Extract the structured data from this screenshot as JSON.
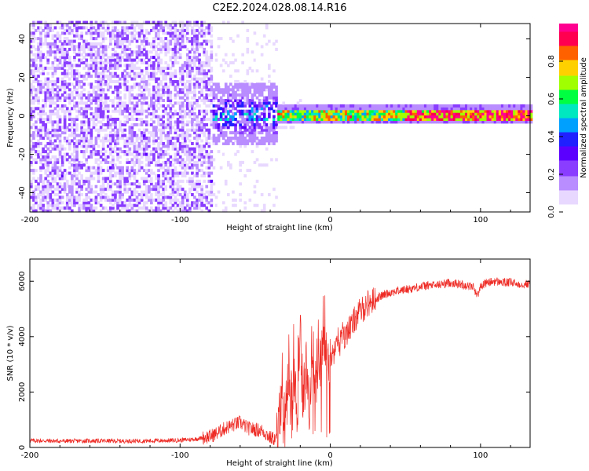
{
  "title": "C2E2.2024.028.08.14.R16",
  "colors": {
    "snr_line": "#ee2a24",
    "colormap": [
      "#ffffff",
      "#e8d8ff",
      "#b98cff",
      "#8a3dff",
      "#5b00ff",
      "#2020ff",
      "#00a0ff",
      "#00e8c0",
      "#00ff40",
      "#a0ff00",
      "#ffd000",
      "#ff6000",
      "#ff0050",
      "#ff0090"
    ]
  },
  "chart_data": [
    {
      "type": "heatmap",
      "xlabel": "Height of straight line (km)",
      "ylabel": "Frequency (Hz)",
      "xlim": [
        -200,
        133
      ],
      "ylim": [
        -50,
        48
      ],
      "x_ticks": [
        -200,
        -100,
        0,
        100
      ],
      "y_ticks": [
        -40,
        -20,
        0,
        20,
        40
      ],
      "x_tick_labels": [
        "-200",
        "-100",
        "0",
        "100"
      ],
      "y_tick_labels": [
        "-40",
        "-20",
        "0",
        "20",
        "40"
      ],
      "colorbar": {
        "label": "Normalized spectral amplitude",
        "range": [
          0,
          1
        ],
        "ticks": [
          0,
          0.2,
          0.4,
          0.6,
          0.8
        ],
        "tick_labels": [
          "0.0",
          "0.2",
          "0.4",
          "0.6",
          "0.8"
        ]
      },
      "description_regions": [
        {
          "x_range": [
            -200,
            -80
          ],
          "freq_range": [
            -50,
            48
          ],
          "level": 0.12
        },
        {
          "x_range": [
            -80,
            -36
          ],
          "freq_range": [
            -50,
            48
          ],
          "level": 0.04
        },
        {
          "x_range": [
            -85,
            -35
          ],
          "freq_range": [
            -15,
            15
          ],
          "level": 0.25
        },
        {
          "x_range": [
            -35,
            133
          ],
          "freq_range": [
            -3,
            3
          ],
          "level": 0.6
        }
      ]
    },
    {
      "type": "line",
      "xlabel": "Height of straight line (km)",
      "ylabel": "SNR (10 * v/v)",
      "xlim": [
        -200,
        133
      ],
      "ylim": [
        0,
        6800
      ],
      "x_ticks": [
        -200,
        -100,
        0,
        100
      ],
      "y_ticks": [
        0,
        2000,
        4000,
        6000
      ],
      "x_tick_labels": [
        "-200",
        "-100",
        "0",
        "100"
      ],
      "y_tick_labels": [
        "0",
        "2000",
        "4000",
        "6000"
      ],
      "series": [
        {
          "x": [
            -200,
            -180,
            -160,
            -140,
            -120,
            -100,
            -90,
            -80,
            -75,
            -70,
            -65,
            -60,
            -55,
            -50,
            -45,
            -40,
            -36,
            -34,
            -32,
            -30,
            -28,
            -26,
            -24,
            -22,
            -20,
            -18,
            -16,
            -14,
            -12,
            -10,
            -8,
            -6,
            -4,
            -2,
            0,
            2,
            4,
            6,
            8,
            10,
            12,
            14,
            16,
            18,
            20,
            25,
            30,
            35,
            40,
            45,
            50,
            55,
            60,
            65,
            70,
            75,
            80,
            85,
            90,
            95,
            98,
            100,
            102,
            105,
            110,
            115,
            120,
            125,
            130,
            133
          ],
          "y": [
            250,
            230,
            240,
            230,
            240,
            260,
            300,
            400,
            520,
            700,
            800,
            900,
            700,
            650,
            600,
            350,
            300,
            900,
            1600,
            700,
            2600,
            1500,
            3200,
            1100,
            3800,
            1800,
            2800,
            1600,
            3600,
            2200,
            3400,
            2900,
            4100,
            3000,
            3400,
            3300,
            4200,
            3700,
            4100,
            3900,
            4400,
            4300,
            4600,
            4800,
            4900,
            5200,
            5350,
            5500,
            5600,
            5650,
            5700,
            5750,
            5800,
            5850,
            5850,
            5900,
            5950,
            5900,
            5850,
            5800,
            5500,
            5800,
            5900,
            5950,
            6000,
            5950,
            5950,
            5900,
            5900,
            5900
          ]
        }
      ]
    }
  ]
}
